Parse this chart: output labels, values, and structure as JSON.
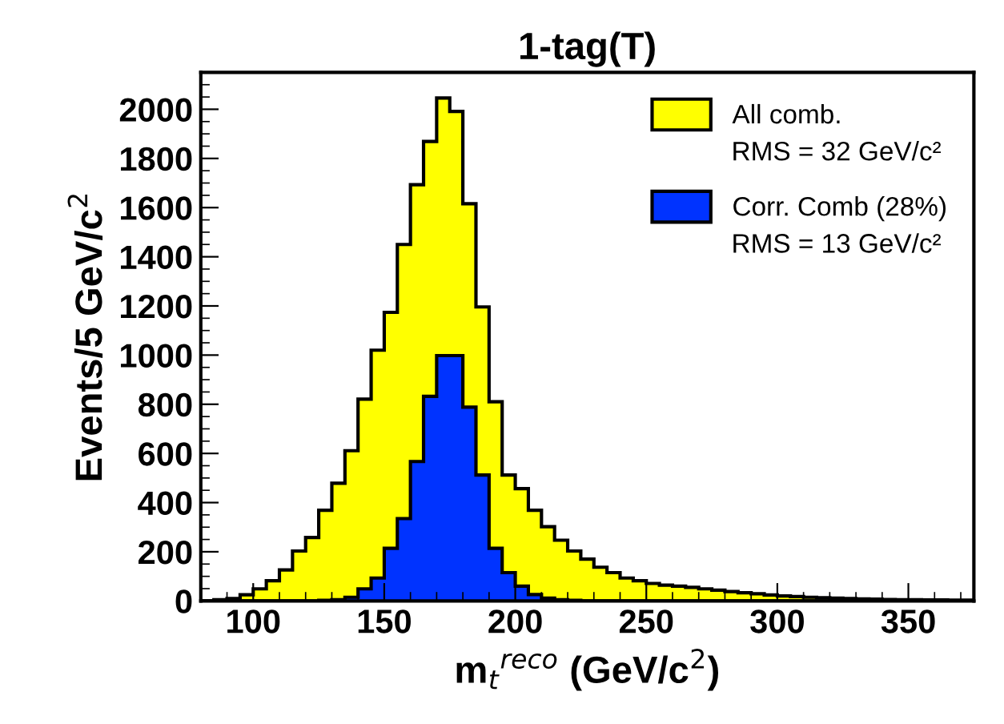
{
  "chart_data": {
    "type": "histogram",
    "title": "1-tag(T)",
    "xlabel": "m$_{t}$$^{reco}$ (GeV/c$^{2}$)",
    "ylabel": "Events/5 GeV/c$^{2}$",
    "bins": [
      80,
      85,
      90,
      95,
      100,
      105,
      110,
      115,
      120,
      125,
      130,
      135,
      140,
      145,
      150,
      155,
      160,
      165,
      170,
      175,
      180,
      185,
      190,
      195,
      200,
      205,
      210,
      215,
      220,
      225,
      230,
      235,
      240,
      245,
      250,
      255,
      260,
      265,
      270,
      275,
      280,
      285,
      290,
      295,
      300,
      305,
      310,
      315,
      320,
      325,
      330,
      335,
      340,
      345,
      350,
      355,
      360,
      365,
      370,
      375
    ],
    "series": [
      {
        "name": "All comb.",
        "color": "#ffff00",
        "values": [
          0,
          5,
          10,
          25,
          49,
          82,
          126,
          203,
          258,
          369,
          479,
          611,
          821,
          1020,
          1174,
          1450,
          1693,
          1869,
          2046,
          1991,
          1616,
          1196,
          810,
          512,
          457,
          369,
          302,
          247,
          203,
          170,
          137,
          115,
          93,
          82,
          71,
          64,
          60,
          55,
          49,
          44,
          38,
          33,
          29,
          24,
          20,
          18,
          15,
          13,
          11,
          10,
          8,
          7,
          6,
          5,
          5,
          4,
          4,
          3,
          3
        ]
      },
      {
        "name": "Corr. Comb (28%)",
        "color": "#0033ff",
        "values": [
          0,
          0,
          0,
          0,
          0,
          0,
          0,
          0,
          0,
          2,
          5,
          15,
          49,
          93,
          214,
          335,
          567,
          832,
          998,
          998,
          788,
          512,
          214,
          115,
          60,
          26,
          11,
          5,
          2,
          0,
          0,
          0,
          0,
          0,
          0,
          0,
          0,
          0,
          0,
          0,
          0,
          0,
          0,
          0,
          0,
          0,
          0,
          0,
          0,
          0,
          0,
          0,
          0,
          0,
          0,
          0,
          0,
          0,
          0
        ]
      }
    ],
    "annotations": [
      "RMS = 32 GeV/c²",
      "RMS = 13 GeV/c²"
    ],
    "xlim": [
      80,
      375
    ],
    "xticks": [
      100,
      150,
      200,
      250,
      300,
      350
    ],
    "ylim": [
      0,
      2150
    ],
    "yticks": [
      0,
      200,
      400,
      600,
      800,
      1000,
      1200,
      1400,
      1600,
      1800,
      2000
    ],
    "legend": "top right",
    "grid": false
  }
}
